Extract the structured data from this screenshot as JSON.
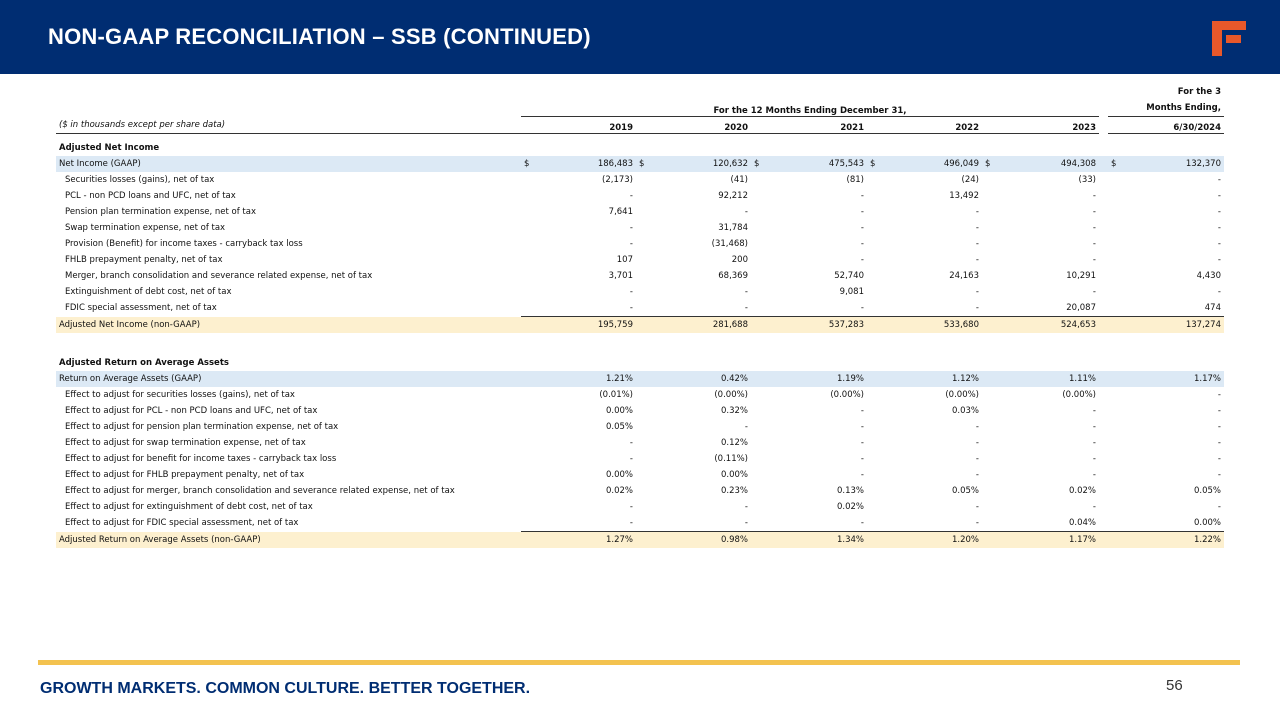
{
  "header": {
    "title": "NON-GAAP RECONCILIATION – SSB (CONTINUED)"
  },
  "table": {
    "period_headers": [
      "For the 12 Months Ending December 31,",
      "For the 3 Months Ending,"
    ],
    "units_note": "($ in thousands except per share data)",
    "columns": [
      "2019",
      "2020",
      "2021",
      "2022",
      "2023",
      "6/30/2024"
    ],
    "sections": [
      {
        "title": "Adjusted Net Income",
        "rows": [
          {
            "label": "Net Income (GAAP)",
            "currency": "$",
            "values": [
              "186,483",
              "120,632",
              "475,543",
              "496,049",
              "494,308",
              "132,370"
            ]
          },
          {
            "label": "Securities losses (gains), net of tax",
            "values": [
              "(2,173)",
              "(41)",
              "(81)",
              "(24)",
              "(33)",
              "-"
            ]
          },
          {
            "label": "PCL - non PCD loans and UFC, net of tax",
            "values": [
              "-",
              "92,212",
              "-",
              "13,492",
              "-",
              "-"
            ]
          },
          {
            "label": "Pension plan termination expense, net of tax",
            "values": [
              "7,641",
              "-",
              "-",
              "-",
              "-",
              "-"
            ]
          },
          {
            "label": "Swap termination expense, net of tax",
            "values": [
              "-",
              "31,784",
              "-",
              "-",
              "-",
              "-"
            ]
          },
          {
            "label": "Provision (Benefit) for income taxes - carryback tax loss",
            "values": [
              "-",
              "(31,468)",
              "-",
              "-",
              "-",
              "-"
            ]
          },
          {
            "label": "FHLB prepayment penalty, net of tax",
            "values": [
              "107",
              "200",
              "-",
              "-",
              "-",
              "-"
            ]
          },
          {
            "label": "Merger, branch consolidation and severance related expense, net of tax",
            "values": [
              "3,701",
              "68,369",
              "52,740",
              "24,163",
              "10,291",
              "4,430"
            ]
          },
          {
            "label": "Extinguishment of debt cost, net of tax",
            "values": [
              "-",
              "-",
              "9,081",
              "-",
              "-",
              "-"
            ]
          },
          {
            "label": "FDIC special assessment, net of tax",
            "values": [
              "-",
              "-",
              "-",
              "-",
              "20,087",
              "474"
            ]
          },
          {
            "label": "Adjusted Net Income (non-GAAP)",
            "values": [
              "195,759",
              "281,688",
              "537,283",
              "533,680",
              "524,653",
              "137,274"
            ]
          }
        ]
      },
      {
        "title": "Adjusted Return on Average Assets",
        "rows": [
          {
            "label": "Return on Average Assets (GAAP)",
            "values": [
              "1.21%",
              "0.42%",
              "1.19%",
              "1.12%",
              "1.11%",
              "1.17%"
            ]
          },
          {
            "label": "Effect to adjust for securities losses (gains), net of tax",
            "values": [
              "(0.01%)",
              "(0.00%)",
              "(0.00%)",
              "(0.00%)",
              "(0.00%)",
              "-"
            ]
          },
          {
            "label": "Effect to adjust for PCL - non PCD loans and UFC, net of tax",
            "values": [
              "0.00%",
              "0.32%",
              "-",
              "0.03%",
              "-",
              "-"
            ]
          },
          {
            "label": "Effect to adjust for pension plan termination expense, net of tax",
            "values": [
              "0.05%",
              "-",
              "-",
              "-",
              "-",
              "-"
            ]
          },
          {
            "label": "Effect to adjust for swap termination expense, net of tax",
            "values": [
              "-",
              "0.12%",
              "-",
              "-",
              "-",
              "-"
            ]
          },
          {
            "label": "Effect to adjust for benefit for income taxes - carryback tax loss",
            "values": [
              "-",
              "(0.11%)",
              "-",
              "-",
              "-",
              "-"
            ]
          },
          {
            "label": "Effect to adjust for FHLB prepayment penalty, net of tax",
            "values": [
              "0.00%",
              "0.00%",
              "-",
              "-",
              "-",
              "-"
            ]
          },
          {
            "label": "Effect to adjust for merger, branch consolidation and severance related expense, net of tax",
            "values": [
              "0.02%",
              "0.23%",
              "0.13%",
              "0.05%",
              "0.02%",
              "0.05%"
            ]
          },
          {
            "label": "Effect to adjust for extinguishment of debt cost, net of tax",
            "values": [
              "-",
              "-",
              "0.02%",
              "-",
              "-",
              "-"
            ]
          },
          {
            "label": "Effect to adjust for FDIC special assessment, net of tax",
            "values": [
              "-",
              "-",
              "-",
              "-",
              "0.04%",
              "0.00%"
            ]
          },
          {
            "label": "Adjusted Return on Average Assets (non-GAAP)",
            "values": [
              "1.27%",
              "0.98%",
              "1.34%",
              "1.20%",
              "1.17%",
              "1.22%"
            ]
          }
        ]
      }
    ]
  },
  "footer": {
    "tagline": "GROWTH MARKETS. COMMON CULTURE. BETTER TOGETHER.",
    "page_number": "56"
  }
}
